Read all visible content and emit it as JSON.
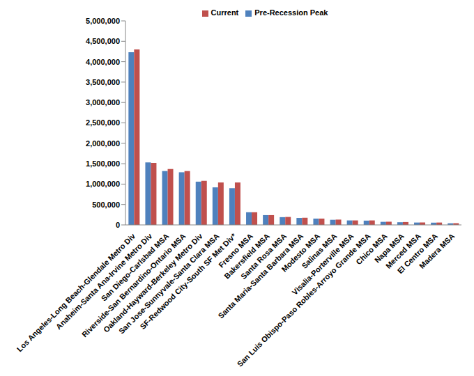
{
  "chart_data": {
    "type": "bar",
    "categories": [
      "Los Angeles-Long Beach-Glendale Metro Div",
      "Anaheim-Santa Ana-Irvine Metro Div",
      "San Diego-Carlsbad MSA",
      "Riverside-San Bernardino-Ontario MSA",
      "Oakland-Hayward-Berkeley Metro Div",
      "San Jose-Sunnyvale-Santa Clara MSA",
      "SF-Redwood City-South SF Met Div*",
      "Fresno MSA",
      "Bakersfield MSA",
      "Santa Rosa MSA",
      "Santa Maria-Santa Barbara MSA",
      "Modesto MSA",
      "Salinas MSA",
      "Visalia-Porterville MSA",
      "San Luis Obispo-Paso Robles-Arroyo Grande MSA",
      "Chico MSA",
      "Napa MSA",
      "Merced MSA",
      "El Centro MSA",
      "Madera MSA"
    ],
    "series": [
      {
        "name": "Pre-Recession Peak",
        "color": "#4f81bd",
        "values": [
          4230000,
          1530000,
          1320000,
          1290000,
          1060000,
          920000,
          900000,
          310000,
          240000,
          190000,
          170000,
          155000,
          125000,
          110000,
          105000,
          75000,
          65000,
          58000,
          55000,
          40000
        ]
      },
      {
        "name": "Current",
        "color": "#c0504d",
        "values": [
          4300000,
          1520000,
          1370000,
          1320000,
          1080000,
          1040000,
          1040000,
          310000,
          240000,
          195000,
          175000,
          155000,
          130000,
          110000,
          110000,
          78000,
          70000,
          60000,
          58000,
          42000
        ]
      }
    ],
    "ylim": [
      0,
      5000000
    ],
    "yticks": [
      {
        "value": 0,
        "label": "0"
      },
      {
        "value": 500000,
        "label": "500,000"
      },
      {
        "value": 1000000,
        "label": "1,000,000"
      },
      {
        "value": 1500000,
        "label": "1,500,000"
      },
      {
        "value": 2000000,
        "label": "2,000,000"
      },
      {
        "value": 2500000,
        "label": "2,500,000"
      },
      {
        "value": 3000000,
        "label": "3,000,000"
      },
      {
        "value": 3500000,
        "label": "3,500,000"
      },
      {
        "value": 4000000,
        "label": "4,000,000"
      },
      {
        "value": 4500000,
        "label": "4,500,000"
      },
      {
        "value": 5000000,
        "label": "5,000,000"
      }
    ],
    "grid": false,
    "legend": "top"
  }
}
